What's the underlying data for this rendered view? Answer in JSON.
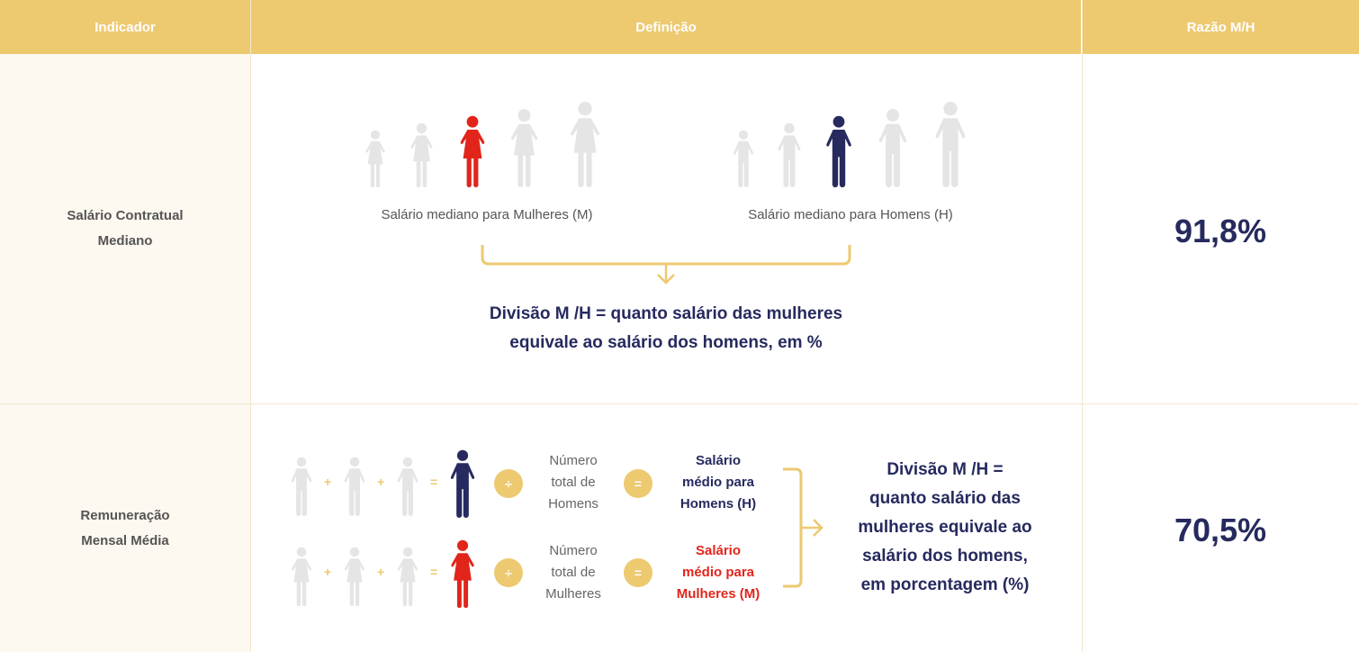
{
  "header": {
    "col1": "Indicador",
    "col2": "Definição",
    "col3": "Razão M/H"
  },
  "colors": {
    "header": "#EDC970",
    "navy": "#262A5E",
    "red": "#E1251B",
    "gray_figure": "#E5E5E5"
  },
  "rows": [
    {
      "indicator": "Salário Contratual Mediano",
      "ratio": "91,8%",
      "women_label": "Salário mediano para Mulheres (M)",
      "men_label": "Salário mediano para Homens (H)",
      "result_line1": "Divisão M /H = quanto salário das mulheres",
      "result_line2": "equivale ao salário dos homens, em %"
    },
    {
      "indicator_line1": "Remuneração",
      "indicator_line2": "Mensal Média",
      "ratio": "70,5%",
      "plus": "+",
      "equals": "=",
      "divide": "÷",
      "men_count": [
        "Número",
        "total de",
        "Homens"
      ],
      "women_count": [
        "Número",
        "total de",
        "Mulheres"
      ],
      "men_result": [
        "Salário",
        "médio para",
        "Homens (H)"
      ],
      "women_result": [
        "Salário",
        "médio para",
        "Mulheres (M)"
      ],
      "result": [
        "Divisão M /H =",
        "quanto salário das",
        "mulheres equivale ao",
        "salário dos homens,",
        "em porcentagem (%)"
      ]
    }
  ]
}
